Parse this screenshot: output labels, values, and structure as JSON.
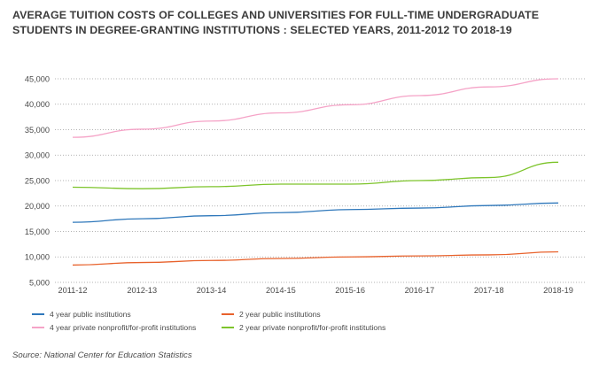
{
  "title": "AVERAGE TUITION COSTS OF COLLEGES AND UNIVERSITIES FOR FULL-TIME UNDERGRADUATE STUDENTS IN DEGREE-GRANTING INSTITUTIONS : SELECTED YEARS, 2011-2012 TO 2018-19",
  "source": "Source: National Center for Education Statistics",
  "chart_data": {
    "type": "line",
    "title": "AVERAGE TUITION COSTS OF COLLEGES AND UNIVERSITIES FOR FULL-TIME UNDERGRADUATE STUDENTS IN DEGREE-GRANTING INSTITUTIONS : SELECTED YEARS, 2011-2012 TO 2018-19",
    "xlabel": "",
    "ylabel": "",
    "categories": [
      "2011-12",
      "2012-13",
      "2013-14",
      "2014-15",
      "2015-16",
      "2016-17",
      "2017-18",
      "2018-19"
    ],
    "ylim": [
      5000,
      45000
    ],
    "yticks": [
      5000,
      10000,
      15000,
      20000,
      25000,
      30000,
      35000,
      40000,
      45000
    ],
    "ytick_labels": [
      "5,000",
      "10,000",
      "15,000",
      "20,000",
      "25,000",
      "30,000",
      "35,000",
      "40,000",
      "45,000"
    ],
    "grid": "horizontal dotted",
    "legend_position": "bottom",
    "series": [
      {
        "name": "4 year public institutions",
        "color": "#2f78bb",
        "values": [
          16800,
          17500,
          18100,
          18700,
          19300,
          19600,
          20100,
          20600
        ]
      },
      {
        "name": "2 year public institutions",
        "color": "#e8622c",
        "values": [
          8400,
          8900,
          9300,
          9700,
          10000,
          10200,
          10400,
          11000
        ]
      },
      {
        "name": "4 year private nonprofit/for-profit institutions",
        "color": "#f5a3c7",
        "values": [
          33500,
          35100,
          36700,
          38300,
          39900,
          41700,
          43400,
          45000
        ]
      },
      {
        "name": "2 year private nonprofit/for-profit institutions",
        "color": "#7dc42b",
        "values": [
          23700,
          23400,
          23800,
          24300,
          24300,
          25000,
          25600,
          28600
        ]
      }
    ]
  }
}
